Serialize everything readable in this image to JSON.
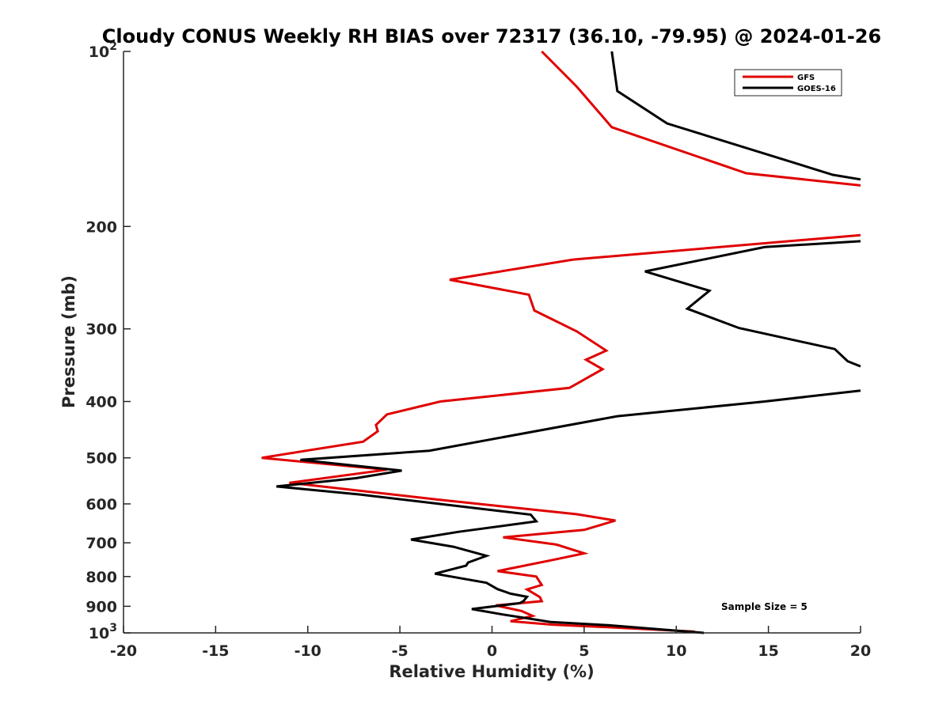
{
  "chart_data": {
    "type": "line",
    "title": "Cloudy CONUS Weekly RH BIAS over 72317 (36.10, -79.95) @ 2024-01-26",
    "xlabel": "Relative Humidity (%)",
    "ylabel": "Pressure (mb)",
    "xlim": [
      -20,
      20
    ],
    "ylim": [
      100,
      1000
    ],
    "y_scale": "log",
    "y_reversed": true,
    "x_ticks": [
      "-20",
      "-15",
      "-10",
      "-5",
      "0",
      "5",
      "10",
      "15",
      "20"
    ],
    "y_ticks": [
      {
        "value": 100,
        "base": "10",
        "exp": "2"
      },
      {
        "value": 200,
        "label": "200"
      },
      {
        "value": 300,
        "label": "300"
      },
      {
        "value": 400,
        "label": "400"
      },
      {
        "value": 500,
        "label": "500"
      },
      {
        "value": 600,
        "label": "600"
      },
      {
        "value": 700,
        "label": "700"
      },
      {
        "value": 800,
        "label": "800"
      },
      {
        "value": 900,
        "label": "900"
      },
      {
        "value": 1000,
        "base": "10",
        "exp": "3"
      }
    ],
    "legend_position": "top-right",
    "grid": false,
    "annotation": "Sample Size = 5",
    "series": [
      {
        "name": "GFS",
        "color": "#e00000",
        "points": [
          [
            2.7,
            100
          ],
          [
            4.6,
            115
          ],
          [
            6.5,
            135
          ],
          [
            13.8,
            162
          ],
          [
            20,
            170
          ],
          [
            null,
            null
          ],
          [
            20,
            207
          ],
          [
            4.4,
            228
          ],
          [
            -2.3,
            247
          ],
          [
            2.0,
            262
          ],
          [
            2.3,
            279
          ],
          [
            4.6,
            303
          ],
          [
            6.2,
            327
          ],
          [
            5.1,
            339
          ],
          [
            6.0,
            352
          ],
          [
            4.2,
            379
          ],
          [
            -2.8,
            400
          ],
          [
            -5.7,
            421
          ],
          [
            -6.3,
            439
          ],
          [
            -6.2,
            450
          ],
          [
            -7.0,
            469
          ],
          [
            -12.5,
            500
          ],
          [
            -5.7,
            524
          ],
          [
            -11.0,
            552
          ],
          [
            -2.9,
            590
          ],
          [
            4.6,
            625
          ],
          [
            6.7,
            641
          ],
          [
            5.0,
            665
          ],
          [
            0.6,
            685
          ],
          [
            3.5,
            705
          ],
          [
            5.0,
            730
          ],
          [
            3.4,
            748
          ],
          [
            0.3,
            783
          ],
          [
            2.4,
            800
          ],
          [
            2.7,
            827
          ],
          [
            1.9,
            842
          ],
          [
            2.2,
            853
          ],
          [
            2.6,
            868
          ],
          [
            2.7,
            882
          ],
          [
            0.2,
            897
          ],
          [
            1.6,
            917
          ],
          [
            2.2,
            935
          ],
          [
            1.0,
            955
          ],
          [
            3.3,
            968
          ],
          [
            7.0,
            980
          ],
          [
            11.0,
            995
          ]
        ]
      },
      {
        "name": "GOES-16",
        "color": "#000000",
        "points": [
          [
            6.5,
            100
          ],
          [
            6.8,
            117
          ],
          [
            9.5,
            133
          ],
          [
            18.5,
            163
          ],
          [
            20,
            166
          ],
          [
            null,
            null
          ],
          [
            20,
            212
          ],
          [
            14.8,
            217
          ],
          [
            8.3,
            239
          ],
          [
            11.8,
            258
          ],
          [
            10.6,
            277
          ],
          [
            13.4,
            299
          ],
          [
            18.6,
            325
          ],
          [
            19.3,
            341
          ],
          [
            20,
            348
          ],
          [
            null,
            null
          ],
          [
            20,
            383
          ],
          [
            14.8,
            400
          ],
          [
            6.8,
            424
          ],
          [
            -3.4,
            486
          ],
          [
            -10.4,
            504
          ],
          [
            -4.9,
            526
          ],
          [
            -7.4,
            542
          ],
          [
            -11.7,
            560
          ],
          [
            -7.2,
            578
          ],
          [
            2.1,
            626
          ],
          [
            2.4,
            643
          ],
          [
            -1.8,
            670
          ],
          [
            -4.4,
            691
          ],
          [
            -2.1,
            711
          ],
          [
            -0.3,
            737
          ],
          [
            -1.3,
            757
          ],
          [
            -1.4,
            766
          ],
          [
            -3.1,
            791
          ],
          [
            -0.3,
            820
          ],
          [
            0.3,
            841
          ],
          [
            1.0,
            856
          ],
          [
            1.9,
            867
          ],
          [
            1.7,
            882
          ],
          [
            1.5,
            889
          ],
          [
            -1.1,
            910
          ],
          [
            0.6,
            930
          ],
          [
            2.0,
            945
          ],
          [
            3.2,
            958
          ],
          [
            6.3,
            970
          ],
          [
            11.5,
            1000
          ]
        ]
      }
    ]
  }
}
